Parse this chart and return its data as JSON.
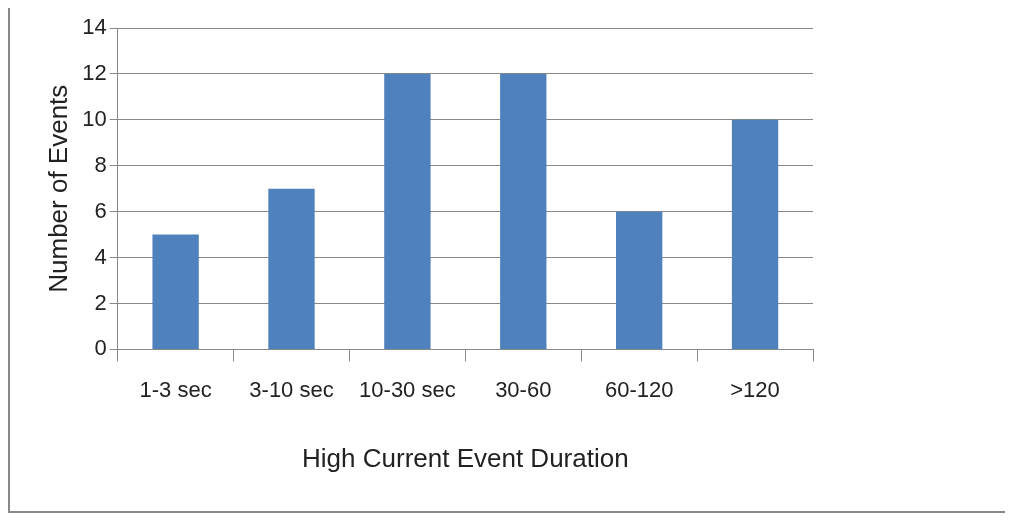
{
  "chart_data": {
    "type": "bar",
    "xlabel": "High Current Event Duration",
    "ylabel": "Number of Events",
    "categories": [
      "1-3 sec",
      "3-10 sec",
      "10-30 sec",
      "30-60",
      "60-120",
      ">120"
    ],
    "values": [
      5,
      7,
      12,
      12,
      6,
      10
    ],
    "color": "#4f81bd",
    "ylim": [
      0,
      14
    ],
    "yticks": [
      0,
      2,
      4,
      6,
      8,
      10,
      12,
      14
    ],
    "grid": "y",
    "legend": false
  }
}
